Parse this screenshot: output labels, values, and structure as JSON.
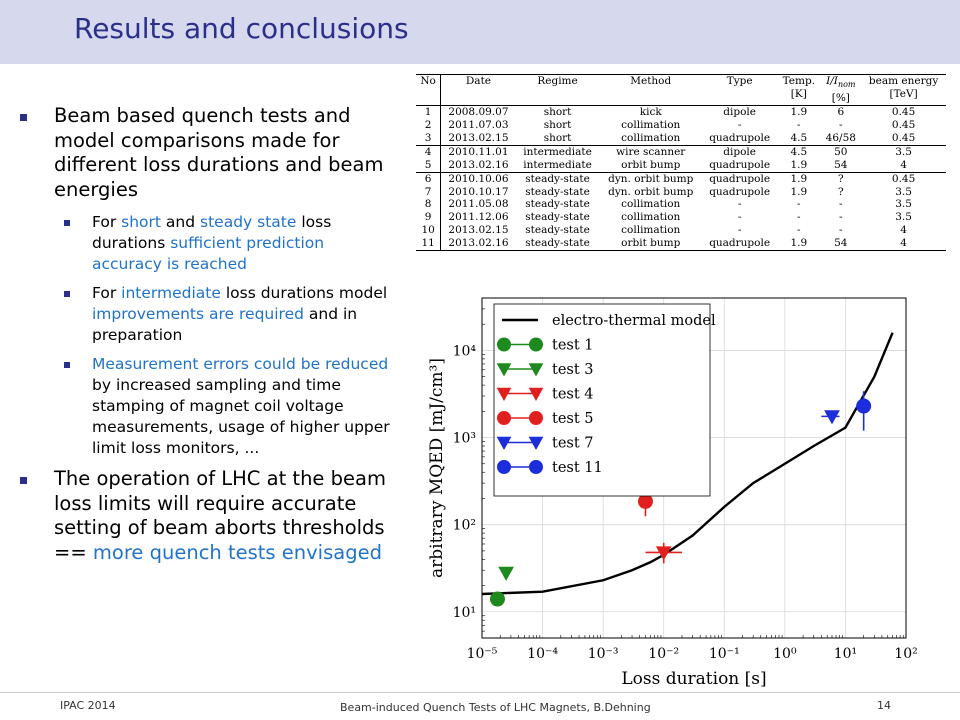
{
  "slide": {
    "title": "Results and conclusions"
  },
  "bullets": {
    "b1": "Beam based quench tests and model comparisons made for different loss durations and beam energies",
    "b1a": [
      "For ",
      "short",
      " and ",
      "steady state",
      " loss durations ",
      "sufficient prediction accuracy is reached"
    ],
    "b1b": [
      "For ",
      "intermediate",
      " loss durations model ",
      "improvements are required",
      " and in preparation"
    ],
    "b1c": [
      "Measurement errors could be reduced",
      " by increased sampling and time stamping of magnet coil voltage measurements, usage of higher upper limit loss monitors, ..."
    ],
    "b2": [
      "The operation of LHC at the beam loss limits will require accurate setting of beam aborts thresholds  == ",
      "more quench tests envisaged"
    ]
  },
  "table": {
    "headers": [
      "No",
      "Date",
      "Regime",
      "Method",
      "Type",
      "Temp.",
      "I/I",
      "beam energy"
    ],
    "header_sub": [
      "",
      "",
      "",
      "",
      "",
      "[K]",
      "[%]",
      "[TeV]"
    ],
    "header_nom": "nom",
    "rows": [
      [
        "1",
        "2008.09.07",
        "short",
        "kick",
        "dipole",
        "1.9",
        "6",
        "0.45"
      ],
      [
        "2",
        "2011.07.03",
        "short",
        "collimation",
        "-",
        "-",
        "-",
        "0.45"
      ],
      [
        "3",
        "2013.02.15",
        "short",
        "collimation",
        "quadrupole",
        "4.5",
        "46/58",
        "0.45"
      ],
      [
        "4",
        "2010.11.01",
        "intermediate",
        "wire scanner",
        "dipole",
        "4.5",
        "50",
        "3.5"
      ],
      [
        "5",
        "2013.02.16",
        "intermediate",
        "orbit bump",
        "quadrupole",
        "1.9",
        "54",
        "4"
      ],
      [
        "6",
        "2010.10.06",
        "steady-state",
        "dyn. orbit bump",
        "quadrupole",
        "1.9",
        "?",
        "0.45"
      ],
      [
        "7",
        "2010.10.17",
        "steady-state",
        "dyn. orbit bump",
        "quadrupole",
        "1.9",
        "?",
        "3.5"
      ],
      [
        "8",
        "2011.05.08",
        "steady-state",
        "collimation",
        "-",
        "-",
        "-",
        "3.5"
      ],
      [
        "9",
        "2011.12.06",
        "steady-state",
        "collimation",
        "-",
        "-",
        "-",
        "3.5"
      ],
      [
        "10",
        "2013.02.15",
        "steady-state",
        "collimation",
        "-",
        "-",
        "-",
        "4"
      ],
      [
        "11",
        "2013.02.16",
        "steady-state",
        "orbit bump",
        "quadrupole",
        "1.9",
        "54",
        "4"
      ]
    ]
  },
  "chart_data": {
    "type": "scatter",
    "xlabel": "Loss duration [s]",
    "ylabel": "arbitrary MQED [mJ/cm³]",
    "x_scale": "log",
    "y_scale": "log",
    "xlim": [
      1e-05,
      100
    ],
    "ylim": [
      5,
      40000
    ],
    "x_ticks": [
      "10⁻⁵",
      "10⁻⁴",
      "10⁻³",
      "10⁻²",
      "10⁻¹",
      "10⁰",
      "10¹",
      "10²"
    ],
    "y_ticks": [
      "10¹",
      "10²",
      "10³",
      "10⁴"
    ],
    "grid": true,
    "legend_position": "top-left",
    "model": {
      "name": "electro-thermal model",
      "color": "#000000",
      "x": [
        1e-05,
        0.0001,
        0.001,
        0.003,
        0.006,
        0.01,
        0.03,
        0.1,
        0.3,
        1,
        3,
        10,
        30,
        60
      ],
      "y": [
        16,
        17,
        23,
        30,
        37,
        45,
        75,
        160,
        300,
        500,
        800,
        1300,
        5000,
        16000
      ]
    },
    "series": [
      {
        "name": "test 1",
        "marker": "circle",
        "color": "#1e8a1e",
        "x": [
          1.8e-05
        ],
        "y": [
          14
        ],
        "yerr": [
          [
            0,
            0
          ]
        ],
        "xerr": [
          [
            1,
            1
          ]
        ]
      },
      {
        "name": "test 3",
        "marker": "triangle-down",
        "color": "#1e8a1e",
        "x": [
          2.5e-05
        ],
        "y": [
          28
        ],
        "yerr": [
          [
            0,
            0
          ]
        ],
        "xerr": [
          [
            1,
            1
          ]
        ]
      },
      {
        "name": "test 4",
        "marker": "triangle-down",
        "color": "#e0201e",
        "x": [
          0.01
        ],
        "y": [
          48
        ],
        "yerr": [
          [
            12,
            14
          ]
        ],
        "xerr": [
          [
            0.005,
            0.01
          ]
        ]
      },
      {
        "name": "test 5",
        "marker": "circle",
        "color": "#e0201e",
        "x": [
          0.005
        ],
        "y": [
          185
        ],
        "yerr": [
          [
            60,
            60
          ]
        ],
        "xerr": [
          [
            1,
            1
          ]
        ]
      },
      {
        "name": "test 7",
        "marker": "triangle-down",
        "color": "#1c2ddb",
        "x": [
          6
        ],
        "y": [
          1750
        ],
        "yerr": [
          [
            0,
            0
          ]
        ],
        "xerr": [
          [
            2,
            2
          ]
        ]
      },
      {
        "name": "test 11",
        "marker": "circle",
        "color": "#1c2ddb",
        "x": [
          20
        ],
        "y": [
          2300
        ],
        "yerr": [
          [
            1100,
            1100
          ]
        ],
        "xerr": [
          [
            1,
            1
          ]
        ]
      }
    ]
  },
  "footer": {
    "left": "IPAC 2014",
    "center": "Beam-induced Quench Tests of LHC Magnets, B.Dehning",
    "page": "14"
  }
}
